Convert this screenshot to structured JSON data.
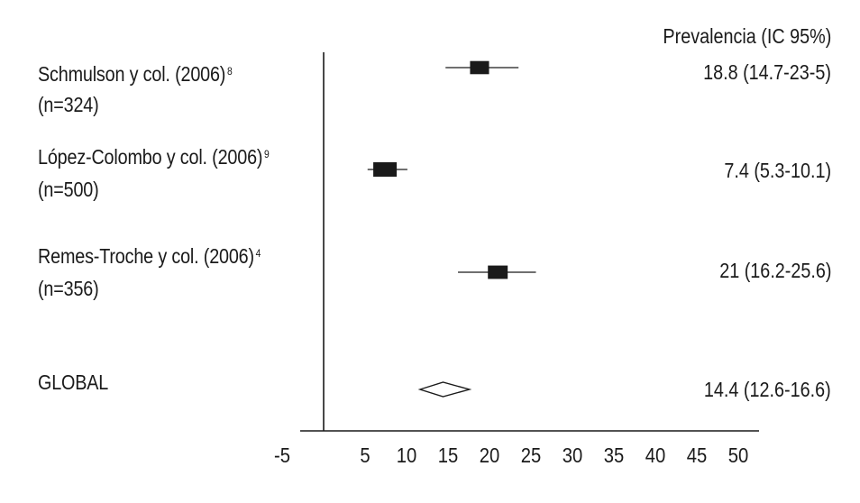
{
  "chart_data": {
    "type": "forest",
    "column_header": "Prevalencia (IC 95%)",
    "xlim": [
      -5,
      50
    ],
    "xticks": [
      -5,
      5,
      10,
      15,
      20,
      25,
      30,
      35,
      40,
      45,
      50
    ],
    "reference_line_x": 0,
    "studies": [
      {
        "name": "Schmulson y col. (2006)",
        "ref": "8",
        "n": "(n=324)",
        "estimate": 18.8,
        "ci": [
          14.7,
          23.5
        ],
        "label": "18.8 (14.7-23-5)"
      },
      {
        "name": "López-Colombo y col. (2006)",
        "ref": "9",
        "n": "(n=500)",
        "estimate": 7.4,
        "ci": [
          5.3,
          10.1
        ],
        "label": "7.4 (5.3-10.1)"
      },
      {
        "name": "Remes-Troche y col. (2006)",
        "ref": "4",
        "n": "(n=356)",
        "estimate": 21,
        "ci": [
          16.2,
          25.6
        ],
        "label": "21 (16.2-25.6)"
      }
    ],
    "overall": {
      "name": "GLOBAL",
      "estimate": 14.4,
      "ci": [
        12.6,
        16.6
      ],
      "label": "14.4 (12.6-16.6)"
    }
  },
  "colors": {
    "ink": "#1a1a1a",
    "background": "#ffffff"
  }
}
